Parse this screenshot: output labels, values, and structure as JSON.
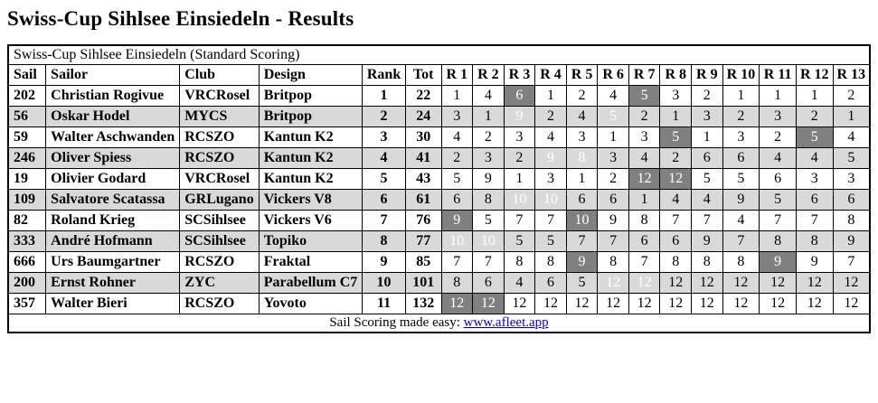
{
  "page": {
    "title": "Swiss-Cup Sihlsee Einsiedeln - Results"
  },
  "colors": {
    "row_alt": "#d9d9d9",
    "discard_bg": "#808080",
    "discard_text": "#ffffff",
    "link": "#0000ee",
    "border": "#000000"
  },
  "table": {
    "caption": "Swiss-Cup Sihlsee Einsiedeln (Standard Scoring)",
    "columns": [
      "Sail",
      "Sailor",
      "Club",
      "Design",
      "Rank",
      "Tot",
      "R 1",
      "R 2",
      "R 3",
      "R 4",
      "R 5",
      "R 6",
      "R 7",
      "R 8",
      "R 9",
      "R 10",
      "R 11",
      "R 12",
      "R 13"
    ],
    "rows": [
      {
        "sail": "202",
        "sailor": "Christian Rogivue",
        "club": "VRCRosel",
        "design": "Britpop",
        "rank": "1",
        "tot": "22",
        "races": [
          {
            "v": 1
          },
          {
            "v": 4
          },
          {
            "v": 6,
            "d": true
          },
          {
            "v": 1
          },
          {
            "v": 2
          },
          {
            "v": 4
          },
          {
            "v": 5,
            "d": true
          },
          {
            "v": 3
          },
          {
            "v": 2
          },
          {
            "v": 1
          },
          {
            "v": 1
          },
          {
            "v": 1
          },
          {
            "v": 2
          }
        ]
      },
      {
        "sail": "56",
        "sailor": "Oskar Hodel",
        "club": "MYCS",
        "design": "Britpop",
        "rank": "2",
        "tot": "24",
        "races": [
          {
            "v": 3
          },
          {
            "v": 1
          },
          {
            "v": 9,
            "d": true
          },
          {
            "v": 2
          },
          {
            "v": 4
          },
          {
            "v": 5,
            "d": true
          },
          {
            "v": 2
          },
          {
            "v": 1
          },
          {
            "v": 3
          },
          {
            "v": 2
          },
          {
            "v": 3
          },
          {
            "v": 2
          },
          {
            "v": 1
          }
        ]
      },
      {
        "sail": "59",
        "sailor": "Walter Aschwanden",
        "club": "RCSZO",
        "design": "Kantun K2",
        "rank": "3",
        "tot": "30",
        "races": [
          {
            "v": 4
          },
          {
            "v": 2
          },
          {
            "v": 3
          },
          {
            "v": 4
          },
          {
            "v": 3
          },
          {
            "v": 1
          },
          {
            "v": 3
          },
          {
            "v": 5,
            "d": true
          },
          {
            "v": 1
          },
          {
            "v": 3
          },
          {
            "v": 2
          },
          {
            "v": 5,
            "d": true
          },
          {
            "v": 4
          }
        ]
      },
      {
        "sail": "246",
        "sailor": "Oliver Spiess",
        "club": "RCSZO",
        "design": "Kantun K2",
        "rank": "4",
        "tot": "41",
        "races": [
          {
            "v": 2
          },
          {
            "v": 3
          },
          {
            "v": 2
          },
          {
            "v": 9,
            "d": true
          },
          {
            "v": 8,
            "d": true
          },
          {
            "v": 3
          },
          {
            "v": 4
          },
          {
            "v": 2
          },
          {
            "v": 6
          },
          {
            "v": 6
          },
          {
            "v": 4
          },
          {
            "v": 4
          },
          {
            "v": 5
          }
        ]
      },
      {
        "sail": "19",
        "sailor": "Olivier Godard",
        "club": "VRCRosel",
        "design": "Kantun K2",
        "rank": "5",
        "tot": "43",
        "races": [
          {
            "v": 5
          },
          {
            "v": 9
          },
          {
            "v": 1
          },
          {
            "v": 3
          },
          {
            "v": 1
          },
          {
            "v": 2
          },
          {
            "v": 12,
            "d": true
          },
          {
            "v": 12,
            "d": true
          },
          {
            "v": 5
          },
          {
            "v": 5
          },
          {
            "v": 6
          },
          {
            "v": 3
          },
          {
            "v": 3
          }
        ]
      },
      {
        "sail": "109",
        "sailor": "Salvatore Scatassa",
        "club": "GRLugano",
        "design": "Vickers V8",
        "rank": "6",
        "tot": "61",
        "races": [
          {
            "v": 6
          },
          {
            "v": 8
          },
          {
            "v": 10,
            "d": true
          },
          {
            "v": 10,
            "d": true
          },
          {
            "v": 6
          },
          {
            "v": 6
          },
          {
            "v": 1
          },
          {
            "v": 4
          },
          {
            "v": 4
          },
          {
            "v": 9
          },
          {
            "v": 5
          },
          {
            "v": 6
          },
          {
            "v": 6
          }
        ]
      },
      {
        "sail": "82",
        "sailor": "Roland Krieg",
        "club": "SCSihlsee",
        "design": "Vickers V6",
        "rank": "7",
        "tot": "76",
        "races": [
          {
            "v": 9,
            "d": true
          },
          {
            "v": 5
          },
          {
            "v": 7
          },
          {
            "v": 7
          },
          {
            "v": 10,
            "d": true
          },
          {
            "v": 9
          },
          {
            "v": 8
          },
          {
            "v": 7
          },
          {
            "v": 7
          },
          {
            "v": 4
          },
          {
            "v": 7
          },
          {
            "v": 7
          },
          {
            "v": 8
          }
        ]
      },
      {
        "sail": "333",
        "sailor": "André Hofmann",
        "club": "SCSihlsee",
        "design": "Topiko",
        "rank": "8",
        "tot": "77",
        "races": [
          {
            "v": 10,
            "d": true
          },
          {
            "v": 10,
            "d": true
          },
          {
            "v": 5
          },
          {
            "v": 5
          },
          {
            "v": 7
          },
          {
            "v": 7
          },
          {
            "v": 6
          },
          {
            "v": 6
          },
          {
            "v": 9
          },
          {
            "v": 7
          },
          {
            "v": 8
          },
          {
            "v": 8
          },
          {
            "v": 9
          }
        ]
      },
      {
        "sail": "666",
        "sailor": "Urs Baumgartner",
        "club": "RCSZO",
        "design": "Fraktal",
        "rank": "9",
        "tot": "85",
        "races": [
          {
            "v": 7
          },
          {
            "v": 7
          },
          {
            "v": 8
          },
          {
            "v": 8
          },
          {
            "v": 9,
            "d": true
          },
          {
            "v": 8
          },
          {
            "v": 7
          },
          {
            "v": 8
          },
          {
            "v": 8
          },
          {
            "v": 8
          },
          {
            "v": 9,
            "d": true
          },
          {
            "v": 9
          },
          {
            "v": 7
          }
        ]
      },
      {
        "sail": "200",
        "sailor": "Ernst Rohner",
        "club": "ZYC",
        "design": "Parabellum C7",
        "rank": "10",
        "tot": "101",
        "races": [
          {
            "v": 8
          },
          {
            "v": 6
          },
          {
            "v": 4
          },
          {
            "v": 6
          },
          {
            "v": 5
          },
          {
            "v": 12,
            "d": true
          },
          {
            "v": 12,
            "d": true
          },
          {
            "v": 12
          },
          {
            "v": 12
          },
          {
            "v": 12
          },
          {
            "v": 12
          },
          {
            "v": 12
          },
          {
            "v": 12
          }
        ]
      },
      {
        "sail": "357",
        "sailor": "Walter Bieri",
        "club": "RCSZO",
        "design": "Yovoto",
        "rank": "11",
        "tot": "132",
        "races": [
          {
            "v": 12,
            "d": true
          },
          {
            "v": 12,
            "d": true
          },
          {
            "v": 12
          },
          {
            "v": 12
          },
          {
            "v": 12
          },
          {
            "v": 12
          },
          {
            "v": 12
          },
          {
            "v": 12
          },
          {
            "v": 12
          },
          {
            "v": 12
          },
          {
            "v": 12
          },
          {
            "v": 12
          },
          {
            "v": 12
          }
        ]
      }
    ],
    "footer": {
      "text": "Sail Scoring made easy: ",
      "link": "www.afleet.app"
    }
  }
}
